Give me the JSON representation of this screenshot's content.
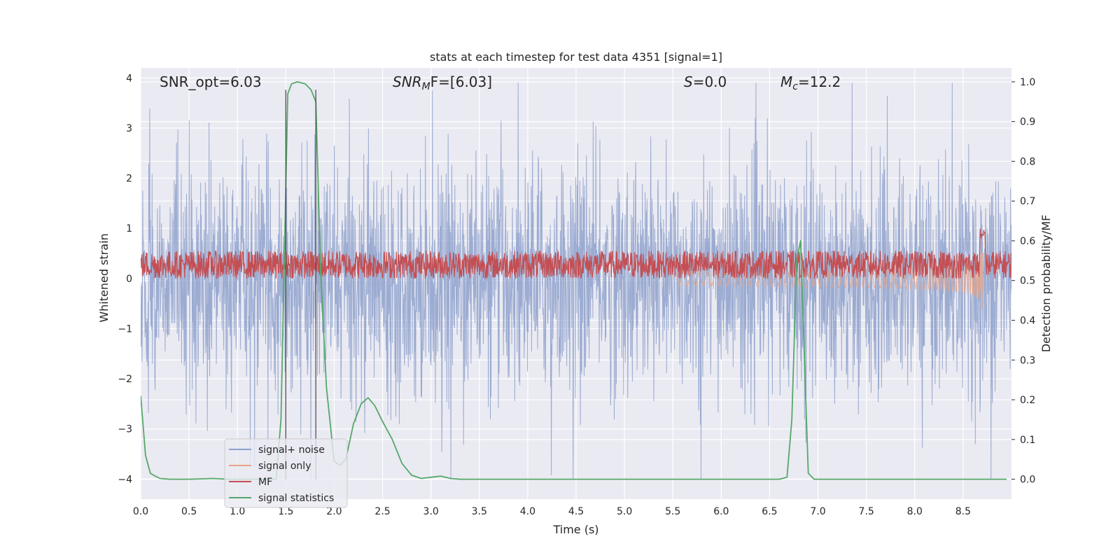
{
  "chart_data": {
    "type": "line",
    "title": "stats at each timestep for test data 4351 [signal=1]",
    "xlabel": "Time (s)",
    "ylabel_left": "Whitened strain",
    "ylabel_right": "Detection probability/MF",
    "xlim": [
      0.0,
      9.0
    ],
    "ylim_left": [
      -4.4,
      4.2
    ],
    "ylim_right": [
      -0.05,
      1.035
    ],
    "x_ticks": [
      "0.0",
      "0.5",
      "1.0",
      "1.5",
      "2.0",
      "2.5",
      "3.0",
      "3.5",
      "4.0",
      "4.5",
      "5.0",
      "5.5",
      "6.0",
      "6.5",
      "7.0",
      "7.5",
      "8.0",
      "8.5"
    ],
    "y_ticks_left": [
      "−4",
      "−3",
      "−2",
      "−1",
      "0",
      "1",
      "2",
      "3",
      "4"
    ],
    "y_ticks_right": [
      "0.0",
      "0.1",
      "0.2",
      "0.3",
      "0.4",
      "0.5",
      "0.6",
      "0.7",
      "0.8",
      "0.9",
      "1.0"
    ],
    "grid": true,
    "annotations": {
      "snr_opt": "SNR_opt=6.03",
      "snr_mf_name": "SNR",
      "snr_mf_sub": "M",
      "snr_mf_tail": "F=[6.03]",
      "s_name": "S",
      "s_value": "=0.0",
      "mc_name": "M",
      "mc_sub": "c",
      "mc_value": "=12.2"
    },
    "detection_window": [
      1.5,
      1.81
    ],
    "legend_position": "lower-left",
    "series": [
      {
        "name": "signal+ noise",
        "color": "#8da0cb",
        "axis": "left",
        "style": "noise",
        "amplitude": 2.6
      },
      {
        "name": "signal only",
        "color": "#e8a488",
        "axis": "left",
        "style": "chirp",
        "onset": 5.5,
        "merger": 8.7,
        "peak_amplitude": 0.95
      },
      {
        "name": "MF",
        "color": "#c44e52",
        "axis": "left",
        "style": "band",
        "low": 0.0,
        "high": 0.55
      },
      {
        "name": "signal statistics",
        "color": "#55a868",
        "axis": "right",
        "style": "line",
        "points": [
          [
            0.0,
            0.21
          ],
          [
            0.05,
            0.06
          ],
          [
            0.1,
            0.015
          ],
          [
            0.15,
            0.008
          ],
          [
            0.2,
            0.002
          ],
          [
            0.3,
            0.0
          ],
          [
            0.5,
            0.0
          ],
          [
            0.75,
            0.002
          ],
          [
            0.9,
            0.0
          ],
          [
            1.0,
            0.0
          ],
          [
            1.2,
            0.0
          ],
          [
            1.4,
            0.0
          ],
          [
            1.45,
            0.15
          ],
          [
            1.52,
            0.97
          ],
          [
            1.56,
            0.995
          ],
          [
            1.62,
            1.0
          ],
          [
            1.7,
            0.995
          ],
          [
            1.76,
            0.98
          ],
          [
            1.81,
            0.95
          ],
          [
            1.86,
            0.52
          ],
          [
            1.92,
            0.23
          ],
          [
            2.0,
            0.045
          ],
          [
            2.06,
            0.035
          ],
          [
            2.12,
            0.05
          ],
          [
            2.2,
            0.14
          ],
          [
            2.28,
            0.19
          ],
          [
            2.35,
            0.205
          ],
          [
            2.42,
            0.185
          ],
          [
            2.5,
            0.145
          ],
          [
            2.6,
            0.1
          ],
          [
            2.7,
            0.04
          ],
          [
            2.8,
            0.01
          ],
          [
            2.9,
            0.002
          ],
          [
            3.0,
            0.005
          ],
          [
            3.1,
            0.008
          ],
          [
            3.2,
            0.002
          ],
          [
            3.3,
            0.0
          ],
          [
            4.0,
            0.0
          ],
          [
            5.0,
            0.0
          ],
          [
            6.0,
            0.0
          ],
          [
            6.6,
            0.0
          ],
          [
            6.68,
            0.005
          ],
          [
            6.73,
            0.15
          ],
          [
            6.78,
            0.55
          ],
          [
            6.82,
            0.6
          ],
          [
            6.86,
            0.3
          ],
          [
            6.9,
            0.015
          ],
          [
            6.96,
            0.0
          ],
          [
            7.5,
            0.0
          ],
          [
            8.5,
            0.0
          ],
          [
            8.95,
            0.0
          ]
        ]
      }
    ]
  }
}
